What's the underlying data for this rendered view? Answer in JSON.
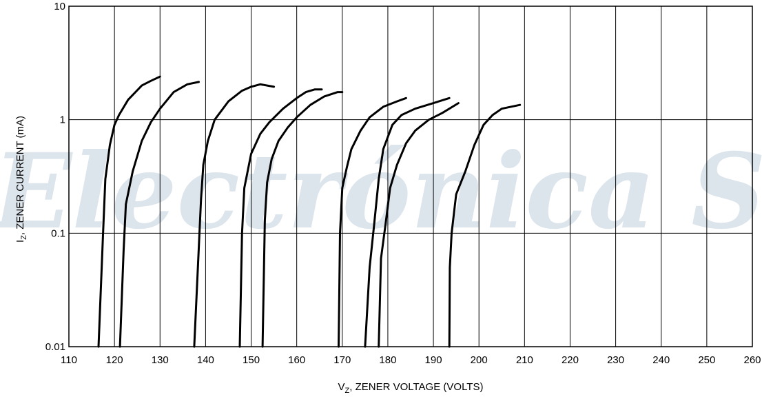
{
  "chart_data": {
    "type": "line",
    "xlabel_main": "V",
    "xlabel_sub": "Z",
    "xlabel_rest": ", ZENER VOLTAGE (VOLTS)",
    "ylabel_main": "I",
    "ylabel_sub": "Z",
    "ylabel_rest": ", ZENER CURRENT (mA)",
    "xlim": [
      110,
      260
    ],
    "ylim": [
      0.01,
      10
    ],
    "yscale": "log",
    "grid": true,
    "x_ticks": [
      "110",
      "120",
      "130",
      "140",
      "150",
      "160",
      "170",
      "180",
      "190",
      "200",
      "210",
      "220",
      "230",
      "240",
      "250",
      "260"
    ],
    "y_ticks": [
      {
        "value": 0.01,
        "label": "0.01"
      },
      {
        "value": 0.1,
        "label": "0.1"
      },
      {
        "value": 1,
        "label": "1"
      },
      {
        "value": 10,
        "label": "10"
      }
    ],
    "watermark": "Electrónica S.A. de C.V.",
    "line_color": "#000000",
    "series": [
      {
        "points": [
          [
            116.5,
            0.01
          ],
          [
            117.5,
            0.1
          ],
          [
            118,
            0.3
          ],
          [
            119,
            0.6
          ],
          [
            120,
            0.9
          ],
          [
            121,
            1.1
          ],
          [
            123,
            1.5
          ],
          [
            126,
            2.0
          ],
          [
            128,
            2.2
          ],
          [
            130,
            2.4
          ]
        ]
      },
      {
        "points": [
          [
            121.2,
            0.01
          ],
          [
            122,
            0.07
          ],
          [
            122.5,
            0.18
          ],
          [
            124,
            0.35
          ],
          [
            126,
            0.65
          ],
          [
            128,
            0.95
          ],
          [
            130,
            1.25
          ],
          [
            133,
            1.75
          ],
          [
            136,
            2.05
          ],
          [
            138.5,
            2.15
          ]
        ]
      },
      {
        "points": [
          [
            137.5,
            0.01
          ],
          [
            139,
            0.2
          ],
          [
            139.5,
            0.4
          ],
          [
            140.5,
            0.65
          ],
          [
            142,
            1.0
          ],
          [
            145,
            1.45
          ],
          [
            148,
            1.8
          ],
          [
            150,
            1.95
          ],
          [
            152,
            2.05
          ],
          [
            155,
            1.95
          ]
        ]
      },
      {
        "points": [
          [
            147.5,
            0.01
          ],
          [
            148,
            0.1
          ],
          [
            148.5,
            0.25
          ],
          [
            150,
            0.5
          ],
          [
            152,
            0.75
          ],
          [
            154,
            0.95
          ],
          [
            157,
            1.25
          ],
          [
            160,
            1.55
          ],
          [
            162,
            1.75
          ],
          [
            164,
            1.85
          ],
          [
            165.5,
            1.85
          ]
        ]
      },
      {
        "points": [
          [
            152.5,
            0.01
          ],
          [
            153,
            0.13
          ],
          [
            153.5,
            0.28
          ],
          [
            154.5,
            0.45
          ],
          [
            156,
            0.65
          ],
          [
            158,
            0.85
          ],
          [
            160,
            1.05
          ],
          [
            163,
            1.35
          ],
          [
            166,
            1.6
          ],
          [
            169,
            1.75
          ],
          [
            170,
            1.75
          ]
        ]
      },
      {
        "points": [
          [
            169.2,
            0.01
          ],
          [
            169.5,
            0.1
          ],
          [
            170,
            0.25
          ],
          [
            171,
            0.38
          ],
          [
            172,
            0.55
          ],
          [
            174,
            0.8
          ],
          [
            176,
            1.05
          ],
          [
            179,
            1.3
          ],
          [
            182,
            1.45
          ],
          [
            184,
            1.55
          ]
        ]
      },
      {
        "points": [
          [
            175,
            0.01
          ],
          [
            176,
            0.05
          ],
          [
            177,
            0.12
          ],
          [
            178,
            0.3
          ],
          [
            179,
            0.55
          ],
          [
            181,
            0.9
          ],
          [
            183,
            1.1
          ],
          [
            186,
            1.25
          ],
          [
            190,
            1.4
          ],
          [
            193.5,
            1.55
          ]
        ]
      },
      {
        "points": [
          [
            178,
            0.01
          ],
          [
            178.5,
            0.06
          ],
          [
            179.5,
            0.12
          ],
          [
            180.5,
            0.25
          ],
          [
            182,
            0.4
          ],
          [
            184,
            0.62
          ],
          [
            186,
            0.8
          ],
          [
            189,
            1.0
          ],
          [
            192,
            1.15
          ],
          [
            195.5,
            1.4
          ]
        ]
      },
      {
        "points": [
          [
            193.5,
            0.01
          ],
          [
            193.6,
            0.05
          ],
          [
            194,
            0.1
          ],
          [
            195,
            0.22
          ],
          [
            197,
            0.35
          ],
          [
            199,
            0.6
          ],
          [
            201,
            0.9
          ],
          [
            203,
            1.1
          ],
          [
            205,
            1.25
          ],
          [
            209,
            1.35
          ]
        ]
      }
    ]
  }
}
